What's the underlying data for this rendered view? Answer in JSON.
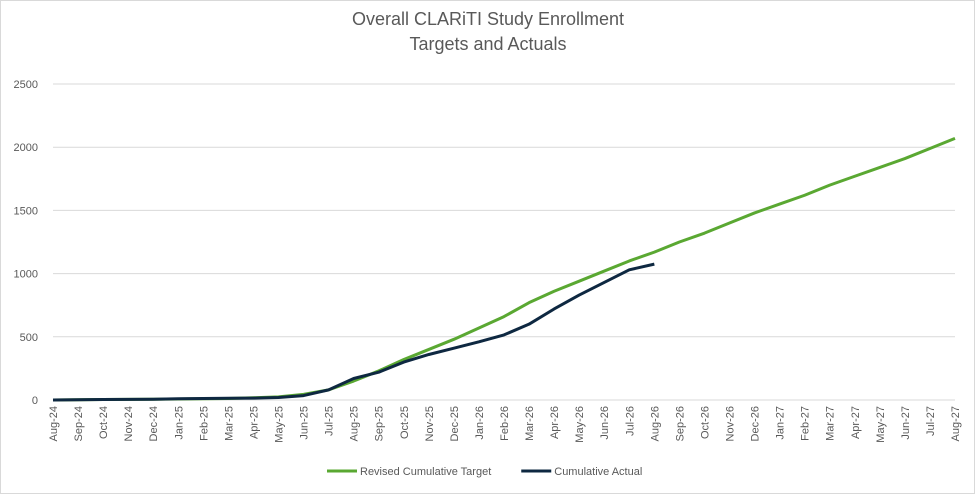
{
  "chart_data": {
    "type": "line",
    "title": "Overall CLARiTI Study Enrollment",
    "subtitle": "Targets and Actuals",
    "categories": [
      "Aug-24",
      "Sep-24",
      "Oct-24",
      "Nov-24",
      "Dec-24",
      "Jan-25",
      "Feb-25",
      "Mar-25",
      "Apr-25",
      "May-25",
      "Jun-25",
      "Jul-25",
      "Aug-25",
      "Sep-25",
      "Oct-25",
      "Nov-25",
      "Dec-25",
      "Jan-26",
      "Feb-26",
      "Mar-26",
      "Apr-26",
      "May-26",
      "Jun-26",
      "Jul-26",
      "Aug-26",
      "Sep-26",
      "Oct-26",
      "Nov-26",
      "Dec-26",
      "Jan-27",
      "Feb-27",
      "Mar-27",
      "Apr-27",
      "May-27",
      "Jun-27",
      "Jul-27",
      "Aug-27"
    ],
    "series": [
      {
        "name": "Revised Cumulative Target",
        "color": "#5aa832",
        "values": [
          0,
          2,
          4,
          5,
          6,
          8,
          10,
          12,
          18,
          25,
          45,
          80,
          150,
          230,
          320,
          400,
          480,
          570,
          660,
          770,
          860,
          940,
          1020,
          1100,
          1170,
          1250,
          1320,
          1400,
          1480,
          1550,
          1620,
          1700,
          1770,
          1840,
          1910,
          1990,
          2070
        ]
      },
      {
        "name": "Cumulative Actual",
        "color": "#0e2841",
        "values": [
          0,
          2,
          4,
          5,
          6,
          10,
          12,
          14,
          15,
          20,
          35,
          80,
          170,
          220,
          300,
          360,
          410,
          460,
          515,
          600,
          720,
          830,
          930,
          1030,
          1075,
          null,
          null,
          null,
          null,
          null,
          null,
          null,
          null,
          null,
          null,
          null,
          null
        ]
      }
    ],
    "ylim": [
      0,
      2500
    ],
    "yticks": [
      0,
      500,
      1000,
      1500,
      2000,
      2500
    ],
    "grid": true,
    "legend": "bottom"
  }
}
